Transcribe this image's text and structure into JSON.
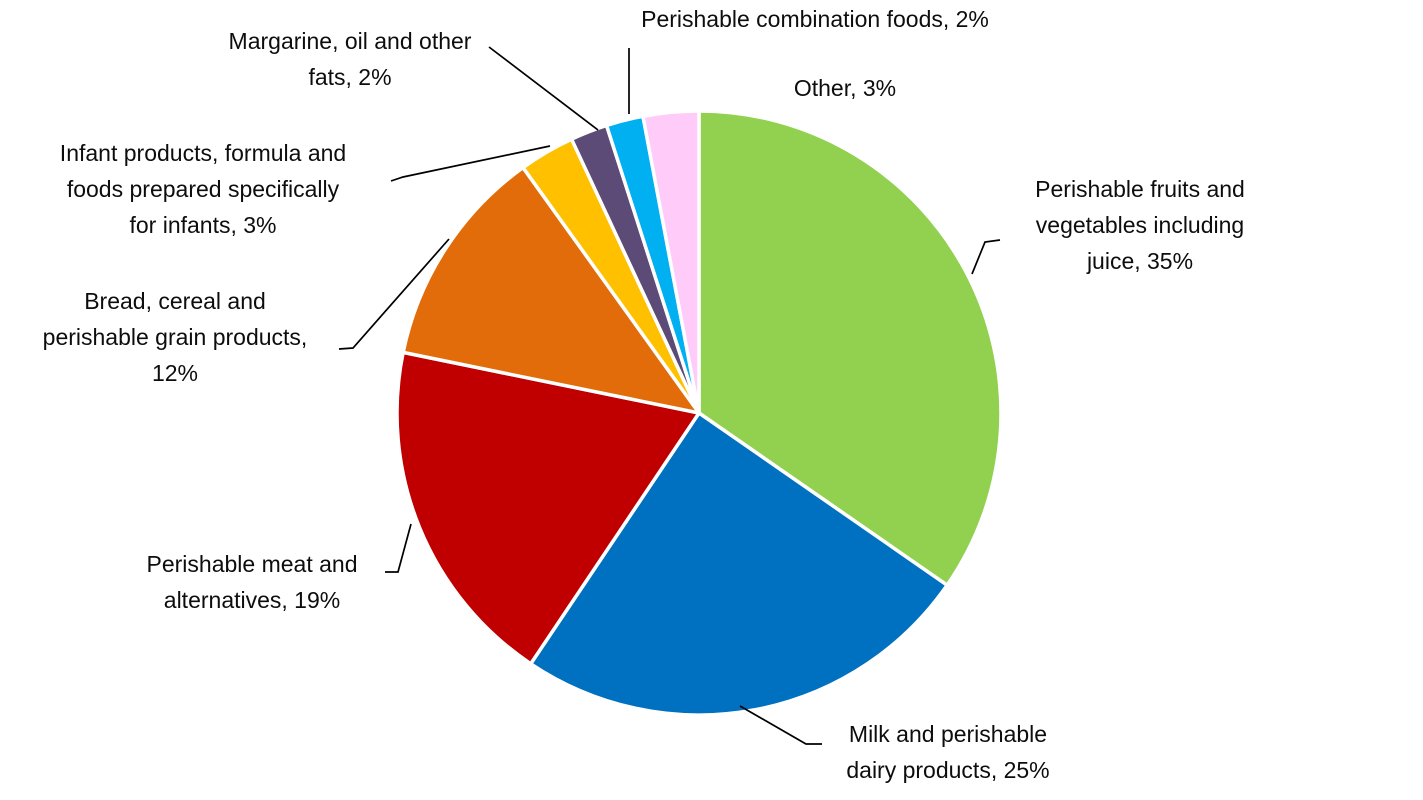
{
  "chart_data": {
    "type": "pie",
    "title": "",
    "direction": "clockwise",
    "start_angle_deg": 0,
    "label_format": "category, percent",
    "legend_position": "none",
    "background_color": "#FFFFFF",
    "slice_gap_color": "#FFFFFF",
    "leader_line_color": "#000000",
    "text_color": "#0D0D0D",
    "slices": [
      {
        "id": "fruits-vegetables",
        "label": "Perishable fruits and vegetables including juice",
        "value": 35,
        "display": "Perishable fruits and vegetables including juice, 35%",
        "label_lines": [
          "Perishable fruits and",
          "vegetables including",
          "juice, 35%"
        ],
        "color": "#92D050"
      },
      {
        "id": "milk-dairy",
        "label": "Milk and perishable dairy products",
        "value": 25,
        "display": "Milk and perishable dairy products, 25%",
        "label_lines": [
          "Milk and perishable",
          "dairy products, 25%"
        ],
        "color": "#0070C0"
      },
      {
        "id": "meat-alternatives",
        "label": "Perishable meat and alternatives",
        "value": 19,
        "display": "Perishable meat and alternatives, 19%",
        "label_lines": [
          "Perishable meat and",
          "alternatives, 19%"
        ],
        "color": "#C00000"
      },
      {
        "id": "bread-grain",
        "label": "Bread, cereal and perishable grain products",
        "value": 12,
        "display": "Bread, cereal and perishable grain products, 12%",
        "label_lines": [
          "Bread, cereal and",
          "perishable grain products,",
          "12%"
        ],
        "color": "#E36C0A"
      },
      {
        "id": "infant-products",
        "label": "Infant products, formula and foods prepared specifically for infants",
        "value": 3,
        "display": "Infant products, formula and foods prepared specifically for infants, 3%",
        "label_lines": [
          "Infant products, formula and",
          "foods prepared specifically",
          "for infants, 3%"
        ],
        "color": "#FFC000"
      },
      {
        "id": "margarine-fats",
        "label": "Margarine, oil and other fats",
        "value": 2,
        "display": "Margarine, oil and other fats, 2%",
        "label_lines": [
          "Margarine, oil and other",
          "fats, 2%"
        ],
        "color": "#5C4A77"
      },
      {
        "id": "combination-foods",
        "label": "Perishable combination foods",
        "value": 2,
        "display": "Perishable combination foods, 2%",
        "label_lines": [
          "Perishable combination foods, 2%"
        ],
        "color": "#00B0F0"
      },
      {
        "id": "other",
        "label": "Other",
        "value": 3,
        "display": "Other, 3%",
        "label_lines": [
          "Other, 3%"
        ],
        "color": "#FFCCFA"
      }
    ]
  }
}
